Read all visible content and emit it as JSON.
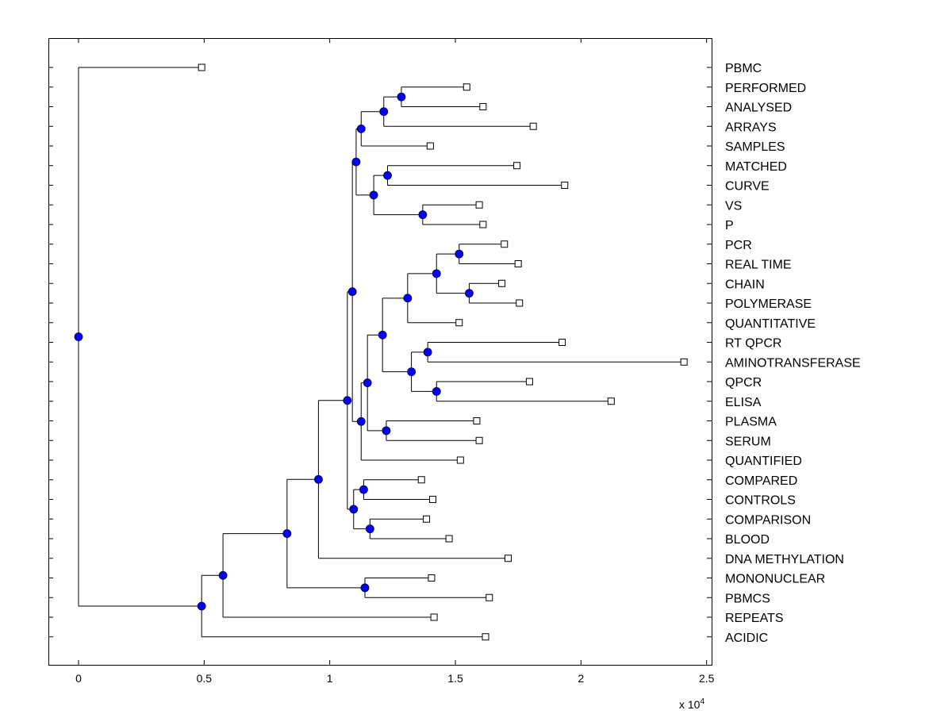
{
  "chart_data": {
    "type": "dendrogram",
    "orientation": "horizontal",
    "xlim": [
      -0.12,
      2.52
    ],
    "x_ticks": [
      0,
      0.5,
      1,
      1.5,
      2,
      2.5
    ],
    "x_tick_labels": [
      "0",
      "0.5",
      "1",
      "1.5",
      "2",
      "2.5"
    ],
    "x_exponent_label": "x 10",
    "x_exponent_power": "4",
    "colors": {
      "node": "#0000ff",
      "leaf": "#ffffff",
      "line": "#000000"
    },
    "leaves": [
      {
        "label": "PBMC",
        "x": 0.49
      },
      {
        "label": "PERFORMED",
        "x": 1.545
      },
      {
        "label": "ANALYSED",
        "x": 1.61
      },
      {
        "label": "ARRAYS",
        "x": 1.81
      },
      {
        "label": "SAMPLES",
        "x": 1.4
      },
      {
        "label": "MATCHED",
        "x": 1.745
      },
      {
        "label": "CURVE",
        "x": 1.935
      },
      {
        "label": "VS",
        "x": 1.595
      },
      {
        "label": "P",
        "x": 1.61
      },
      {
        "label": "PCR",
        "x": 1.695
      },
      {
        "label": "REAL TIME",
        "x": 1.75
      },
      {
        "label": "CHAIN",
        "x": 1.685
      },
      {
        "label": "POLYMERASE",
        "x": 1.755
      },
      {
        "label": "QUANTITATIVE",
        "x": 1.515
      },
      {
        "label": "RT QPCR",
        "x": 1.925
      },
      {
        "label": "AMINOTRANSFERASE",
        "x": 2.41
      },
      {
        "label": "QPCR",
        "x": 1.795
      },
      {
        "label": "ELISA",
        "x": 2.12
      },
      {
        "label": "PLASMA",
        "x": 1.585
      },
      {
        "label": "SERUM",
        "x": 1.595
      },
      {
        "label": "QUANTIFIED",
        "x": 1.52
      },
      {
        "label": "COMPARED",
        "x": 1.365
      },
      {
        "label": "CONTROLS",
        "x": 1.41
      },
      {
        "label": "COMPARISON",
        "x": 1.385
      },
      {
        "label": "BLOOD",
        "x": 1.475
      },
      {
        "label": "DNA METHYLATION",
        "x": 1.71
      },
      {
        "label": "MONONUCLEAR",
        "x": 1.405
      },
      {
        "label": "PBMCS",
        "x": 1.635
      },
      {
        "label": "REPEATS",
        "x": 1.415
      },
      {
        "label": "ACIDIC",
        "x": 1.62
      }
    ],
    "nodes": [
      {
        "id": "n1",
        "x": 1.285,
        "children": [
          "L1",
          "L2"
        ]
      },
      {
        "id": "n2",
        "x": 1.215,
        "children": [
          "n1",
          "L3"
        ]
      },
      {
        "id": "n3",
        "x": 1.125,
        "children": [
          "n2",
          "L4"
        ]
      },
      {
        "id": "n4",
        "x": 1.23,
        "children": [
          "L5",
          "L6"
        ]
      },
      {
        "id": "n5",
        "x": 1.37,
        "children": [
          "L7",
          "L8"
        ]
      },
      {
        "id": "n6",
        "x": 1.175,
        "children": [
          "n4",
          "n5"
        ]
      },
      {
        "id": "n7",
        "x": 1.105,
        "children": [
          "n3",
          "n6"
        ]
      },
      {
        "id": "n8",
        "x": 1.515,
        "children": [
          "L9",
          "L10"
        ]
      },
      {
        "id": "n9",
        "x": 1.555,
        "children": [
          "L11",
          "L12"
        ]
      },
      {
        "id": "n10",
        "x": 1.425,
        "children": [
          "n8",
          "n9"
        ]
      },
      {
        "id": "n11",
        "x": 1.31,
        "children": [
          "n10",
          "L13"
        ]
      },
      {
        "id": "n12",
        "x": 1.39,
        "children": [
          "L14",
          "L15"
        ]
      },
      {
        "id": "n13",
        "x": 1.425,
        "children": [
          "L16",
          "L17"
        ]
      },
      {
        "id": "n14",
        "x": 1.325,
        "children": [
          "n12",
          "n13"
        ]
      },
      {
        "id": "n15",
        "x": 1.21,
        "children": [
          "n11",
          "n14"
        ]
      },
      {
        "id": "n16",
        "x": 1.225,
        "children": [
          "L18",
          "L19"
        ]
      },
      {
        "id": "n17",
        "x": 1.15,
        "children": [
          "n15",
          "n16"
        ]
      },
      {
        "id": "n18",
        "x": 1.125,
        "children": [
          "n17",
          "L20"
        ]
      },
      {
        "id": "n19",
        "x": 1.09,
        "children": [
          "n7",
          "n18"
        ]
      },
      {
        "id": "n20",
        "x": 1.135,
        "children": [
          "L21",
          "L22"
        ]
      },
      {
        "id": "n21",
        "x": 1.16,
        "children": [
          "L23",
          "L24"
        ]
      },
      {
        "id": "n22",
        "x": 1.095,
        "children": [
          "n20",
          "n21"
        ]
      },
      {
        "id": "n23",
        "x": 1.07,
        "children": [
          "n19",
          "n22"
        ]
      },
      {
        "id": "n24",
        "x": 0.955,
        "children": [
          "n23",
          "L25"
        ]
      },
      {
        "id": "n25",
        "x": 1.14,
        "children": [
          "L26",
          "L27"
        ]
      },
      {
        "id": "n26",
        "x": 0.83,
        "children": [
          "n24",
          "n25"
        ]
      },
      {
        "id": "n27",
        "x": 0.575,
        "children": [
          "n26",
          "L28"
        ]
      },
      {
        "id": "n28",
        "x": 0.49,
        "children": [
          "n27",
          "L29"
        ]
      },
      {
        "id": "n29",
        "x": 0.0,
        "children": [
          "L0",
          "n28"
        ]
      }
    ]
  }
}
